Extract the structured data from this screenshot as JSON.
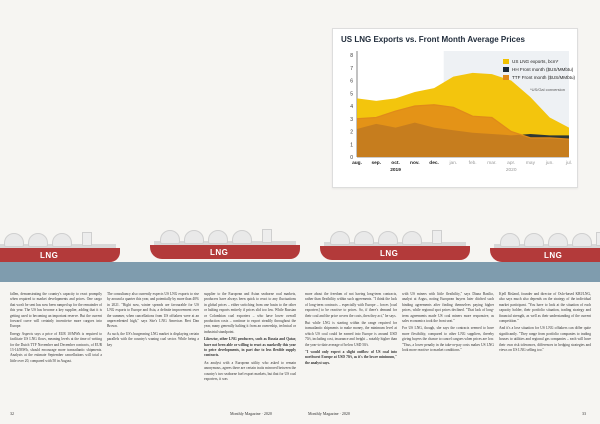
{
  "chart": {
    "title": "US LNG Exports vs. Front Month Average Prices",
    "note": "*US/Gal conversion",
    "legend": [
      {
        "label": "US LNG exports, bcm*",
        "color": "#f2c200"
      },
      {
        "label": "HH Front month ($US/MMbtu)",
        "color": "#1d2a38"
      },
      {
        "label": "TTF Front month ($US/MMbtu)",
        "color": "#e08a1a"
      }
    ],
    "xticks": [
      "aug.",
      "sep.",
      "oct.",
      "nov.",
      "dec.",
      "jan.",
      "feb.",
      "mar.",
      "apr.",
      "may",
      "jun.",
      "jul."
    ],
    "year_labels": [
      "2019",
      "2020"
    ],
    "yticks": [
      "0",
      "1",
      "2",
      "3",
      "4",
      "5",
      "6",
      "7",
      "8"
    ]
  },
  "chart_data": {
    "type": "area",
    "title": "US LNG Exports vs. Front Month Average Prices",
    "categories": [
      "aug.",
      "sep.",
      "oct.",
      "nov.",
      "dec.",
      "jan.",
      "feb.",
      "mar.",
      "apr.",
      "may",
      "jun.",
      "jul."
    ],
    "series": [
      {
        "name": "US LNG exports, bcm*",
        "values": [
          4.6,
          4.4,
          4.6,
          5.1,
          5.4,
          6.3,
          6.6,
          6.5,
          6.0,
          4.7,
          3.1,
          2.3
        ]
      },
      {
        "name": "HH Front month ($US/MMbtu)",
        "values": [
          2.2,
          2.6,
          2.3,
          2.7,
          2.3,
          2.1,
          1.9,
          1.8,
          1.7,
          1.8,
          1.7,
          1.7
        ]
      },
      {
        "name": "TTF Front month ($US/MMbtu)",
        "values": [
          3.0,
          3.1,
          3.6,
          4.0,
          4.1,
          3.9,
          3.2,
          3.1,
          2.0,
          1.5,
          1.5,
          1.4
        ]
      }
    ],
    "ylim": [
      0,
      8
    ],
    "legend_position": "top-right",
    "grid": false
  },
  "ship_label": "LNG",
  "columns": [
    {
      "paragraphs": [
        {
          "text": "fallen, demonstrating the country's capacity to react promptly when required to market developments and prices. One cargo that won't be sent has now been ramped up for the remainder of this year. The US has become a key supplier, adding that it is getting used to becoming an important reserve. But the current forward curve will certainly incentivise more cargoes into Europe.",
          "lead": false
        },
        {
          "text": "Energy Aspects says a price of EUR 10/MWh is required to facilitate US LNG flows, meaning levels at the time of writing for the Dutch TTF November and December contracts, of EUR 13-14/MWh, should encourage more transatlantic shipments. Analysts at the estimate September cancellations will total a little over 20, compared with 50 in August.",
          "lead": false
        }
      ]
    },
    {
      "paragraphs": [
        {
          "text": "The consultancy also currently expects US LNG exports to rise by around a quarter this year, and potentially by more than 40% in 2021. \"Right now, winter spreads are favourable for US LNG exports to Europe and Asia, a definite improvement over the summer, when cancellations from US offtakers were at an unprecedented high,\" says Site's LNG Americas Bert Dan Brown.",
          "lead": false
        },
        {
          "text": "As such, the US's burgeoning LNG market is displaying certain parallels with the country's waning coal sector. While being a key",
          "lead": false
        }
      ]
    },
    {
      "paragraphs": [
        {
          "text": "supplier to the European and Asian seaborne coal markets, producers have always been quick to react to any fluctuations in global prices – either switching from one basin to the other or halting exports entirely if prices slid too low. While Russian or Colombian coal exporters – who have lower overall production costs – continue to export steadily throughout the year, many generally halting it from an ownership, technical or industrial standpoint.",
          "lead": false
        },
        {
          "text": "Likewise, other LNG producers, such as Russia and Qatar, have not been able or willing to react as markedly this year to price developments, in part due to less flexible supply contracts.",
          "lead": true
        },
        {
          "text": "An analyst with a European utility who asked to remain anonymous, agrees there are certain traits mirrored between the country's two seaborne fuel export markets, but that for US coal exporters, it was",
          "lead": false
        }
      ]
    },
    {
      "paragraphs": [
        {
          "text": "more about the freedom of not having long-term contracts, rather than flexibility within such agreements. \"I think the lack of long-term contracts – especially with Europe – forces [coal exporters] to be reactive to prices. So, if there's demand for their coal and the price covers the costs, then they act,\" he says.",
          "lead": false
        },
        {
          "text": "But while LNG is starting within the range required for transatlantic shipments to make money, the minimum level at which US coal could be earned into Europe is around USD 70/t, including cost, insurance and freight – notably higher than the year-to-date average of below USD 50/t.",
          "lead": false
        },
        {
          "text": "\"I would only expect a slight outflow of US coal into northwest Europe at USD 70/t, as it's the lower minimum,\" the analyst says.",
          "lead": true
        }
      ]
    },
    {
      "paragraphs": [
        {
          "text": "with US miners with little flexibility,\" says Diana Basilio, analyst at Argus, noting European buyers later ditched such binding agreements after finding themselves paying higher prices, while regional spot prices declined. \"That lack of long-term agreements made US coal miners more responsive, as sales economics took the front seat.\"",
          "lead": false
        },
        {
          "text": "For US LNG, though, she says the contracts seemed to have more flexibility, compared to other LNG suppliers, thereby giving buyers the chance to cancel cargoes when prices are low. \"Thus, a lower penalty in the take-or-pay costs makes US LNG look more reactive to market conditions.\"",
          "lead": false
        }
      ]
    },
    {
      "paragraphs": [
        {
          "text": "Kjell Risland, founder and director of Oslo-based KRI/LNG, also says much also depends on the strategy of the individual market participant. \"You have to look at the situation of each capacity holder, their portfolio situation, trading strategy and financial strength, as well as their understanding of the current competition.\"",
          "lead": false
        },
        {
          "text": "And it's a lose situation for US LNG offtakers can differ quite significantly. \"They range from portfolio companies to trading houses to utilities and regional gas companies – each will have their own risk tolerances, differences in hedging strategies and views on US LNG selling too.\"",
          "lead": false
        }
      ]
    }
  ],
  "footer": {
    "left_folio": "32",
    "left_running": "Monthly Magazine · 2020",
    "right_running": "Monthly Magazine · 2020",
    "right_folio": "33"
  }
}
